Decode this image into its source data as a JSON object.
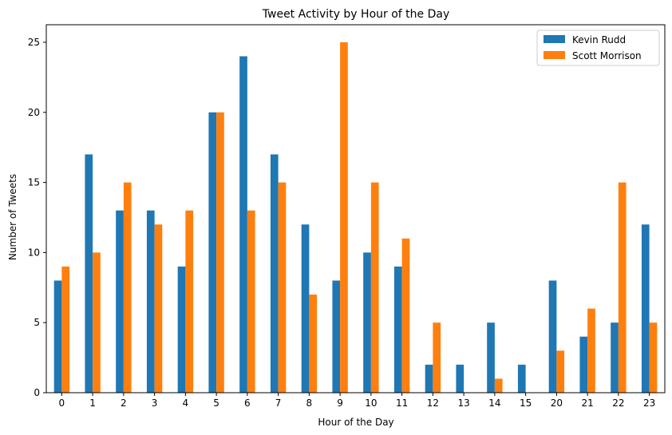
{
  "chart_data": {
    "type": "bar",
    "title": "Tweet Activity by Hour of the Day",
    "xlabel": "Hour of the Day",
    "ylabel": "Number of Tweets",
    "ylim": [
      0,
      26.25
    ],
    "yticks": [
      0,
      5,
      10,
      15,
      20,
      25
    ],
    "categories": [
      "0",
      "1",
      "2",
      "3",
      "4",
      "5",
      "6",
      "7",
      "8",
      "9",
      "10",
      "11",
      "12",
      "13",
      "14",
      "15",
      "20",
      "21",
      "22",
      "23"
    ],
    "series": [
      {
        "name": "Kevin Rudd",
        "color": "#1f77b4",
        "values": [
          8,
          17,
          13,
          13,
          9,
          20,
          24,
          17,
          12,
          8,
          10,
          9,
          2,
          2,
          5,
          2,
          8,
          4,
          5,
          12
        ]
      },
      {
        "name": "Scott Morrison",
        "color": "#ff7f0e",
        "values": [
          9,
          10,
          15,
          12,
          13,
          20,
          13,
          15,
          7,
          25,
          15,
          11,
          5,
          0,
          1,
          0,
          3,
          6,
          15,
          5
        ]
      }
    ],
    "grid": false,
    "legend_position": "top-right"
  }
}
